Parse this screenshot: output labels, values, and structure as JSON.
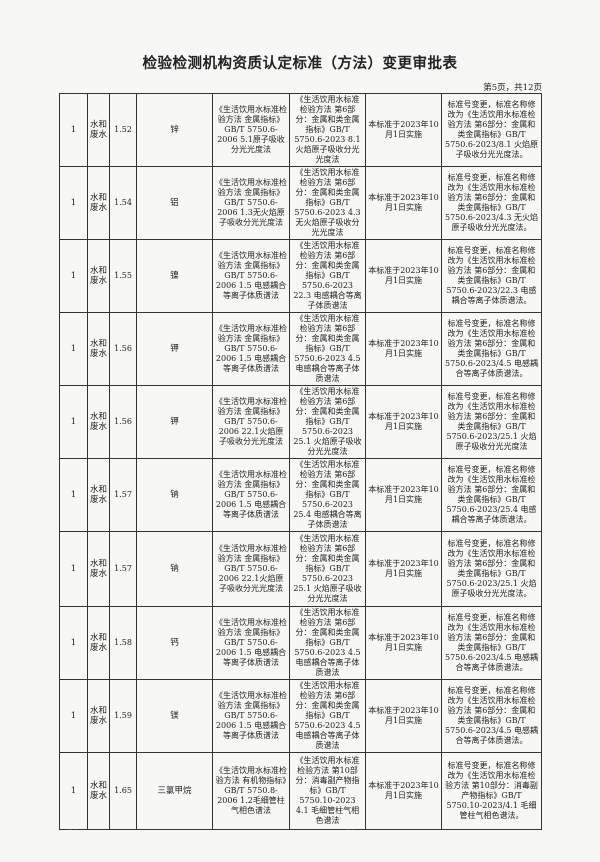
{
  "title": "检验检测机构资质认定标准（方法）变更审批表",
  "page_info": "第5页，共12页",
  "rows": [
    {
      "no": "1",
      "category": "水和废水",
      "code": "1.52",
      "item": "锌",
      "old_std": "《生活饮用水标准检验方法 金属指标》GB/T 5750.6-2006 5.1原子吸收分光光度法",
      "new_std": "《生活饮用水标准检验方法 第6部分：金属和类金属指标》GB/T 5750.6-2023 8.1 火焰原子吸收分光光度法",
      "implement": "本标准于2023年10月1日实施",
      "change": "标准号变更，标准名称修改为《生活饮用水标准检验方法 第6部分：金属和类金属指标》GB/T 5750.6-2023/8.1 火焰原子吸收分光光度法。"
    },
    {
      "no": "1",
      "category": "水和废水",
      "code": "1.54",
      "item": "铝",
      "old_std": "《生活饮用水标准检验方法 金属指标》GB/T 5750.6-2006 1.3无火焰原子吸收分光光度法",
      "new_std": "《生活饮用水标准检验方法 第6部分：金属和类金属指标》GB/T 5750.6-2023 4.3 无火焰原子吸收分光光度法",
      "implement": "本标准于2023年10月1日实施",
      "change": "标准号变更，标准名称修改为《生活饮用水标准检验方法 第6部分：金属和类金属指标》GB/T 5750.6-2023/4.3 无火焰原子吸收分光光度法。"
    },
    {
      "no": "1",
      "category": "水和废水",
      "code": "1.55",
      "item": "镍",
      "old_std": "《生活饮用水标准检验方法 金属指标》GB/T 5750.6-2006 1.5 电感耦合等离子体质谱法",
      "new_std": "《生活饮用水标准检验方法 第6部分：金属和类金属指标》GB/T 5750.6-2023 22.3 电感耦合等离子体质谱法",
      "implement": "本标准于2023年10月1日实施",
      "change": "标准号变更，标准名称修改为《生活饮用水标准检验方法 第6部分：金属和类金属指标》GB/T 5750.6-2023/22.3 电感耦合等离子体质谱法。"
    },
    {
      "no": "1",
      "category": "水和废水",
      "code": "1.56",
      "item": "钾",
      "old_std": "《生活饮用水标准检验方法 金属指标》GB/T 5750.6-2006 1.5 电感耦合等离子体质谱法",
      "new_std": "《生活饮用水标准检验方法 第6部分：金属和类金属指标》GB/T 5750.6-2023 4.5 电感耦合等离子体质谱法",
      "implement": "本标准于2023年10月1日实施",
      "change": "标准号变更，标准名称修改为《生活饮用水标准检验方法 第6部分：金属和类金属指标》GB/T 5750.6-2023/4.5 电感耦合等离子体质谱法。"
    },
    {
      "no": "1",
      "category": "水和废水",
      "code": "1.56",
      "item": "钾",
      "old_std": "《生活饮用水标准检验方法 金属指标》GB/T 5750.6-2006 22.1火焰原子吸收分光光度法",
      "new_std": "《生活饮用水标准检验方法 第6部分：金属和类金属指标》GB/T 5750.6-2023 25.1 火焰原子吸收分光光度法",
      "implement": "本标准于2023年10月1日实施",
      "change": "标准号变更，标准名称修改为《生活饮用水标准检验方法 第6部分：金属和类金属指标》GB/T 5750.6-2023/25.1 火焰原子吸收分光光度法"
    },
    {
      "no": "1",
      "category": "水和废水",
      "code": "1.57",
      "item": "钠",
      "old_std": "《生活饮用水标准检验方法 金属指标》GB/T 5750.6-2006 1.5 电感耦合等离子体质谱法",
      "new_std": "《生活饮用水标准检验方法 第6部分：金属和类金属指标》GB/T 5750.6-2023 25.4 电感耦合等离子体质谱法",
      "implement": "本标准于2023年10月1日实施",
      "change": "标准号变更，标准名称修改为《生活饮用水标准检验方法 第6部分：金属和类金属指标》GB/T 5750.6-2023/25.4 电感耦合等离子体质谱法。"
    },
    {
      "no": "1",
      "category": "水和废水",
      "code": "1.57",
      "item": "钠",
      "old_std": "《生活饮用水标准检验方法 金属指标》GB/T 5750.6-2006 22.1火焰原子吸收分光光度法",
      "new_std": "《生活饮用水标准检验方法 第6部分：金属和类金属指标》GB/T 5750.6-2023 25.1 火焰原子吸收分光光度法",
      "implement": "本标准于2023年10月1日实施",
      "change": "标准号变更，标准名称修改为《生活饮用水标准检验方法 第6部分：金属和类金属指标》GB/T 5750.6-2023/25.1 火焰原子吸收分光光度法。"
    },
    {
      "no": "1",
      "category": "水和废水",
      "code": "1.58",
      "item": "钙",
      "old_std": "《生活饮用水标准检验方法 金属指标》GB/T 5750.6-2006 1.5 电感耦合等离子体质谱法",
      "new_std": "《生活饮用水标准检验方法 第6部分：金属和类金属指标》GB/T 5750.6-2023 4.5 电感耦合等离子体质谱法",
      "implement": "本标准于2023年10月1日实施",
      "change": "标准号变更，标准名称修改为《生活饮用水标准检验方法 第6部分：金属和类金属指标》GB/T 5750.6-2023/4.5 电感耦合等离子体质谱法。"
    },
    {
      "no": "1",
      "category": "水和废水",
      "code": "1.59",
      "item": "镁",
      "old_std": "《生活饮用水标准检验方法 金属指标》GB/T 5750.6-2006 1.5 电感耦合等离子体质谱法",
      "new_std": "《生活饮用水标准检验方法 第6部分：金属和类金属指标》GB/T 5750.6-2023 4.5 电感耦合等离子体质谱法",
      "implement": "本标准于2023年10月1日实施",
      "change": "标准号变更，标准名称修改为《生活饮用水标准检验方法 第6部分：金属和类金属指标》GB/T 5750.6-2023/4.5 电感耦合等离子体质谱法。"
    },
    {
      "no": "1",
      "category": "水和废水",
      "code": "1.65",
      "item": "三氯甲烷",
      "old_std": "《生活饮用水标准检验方法 有机物指标》GB/T 5750.8-2006 1.2毛细管柱气相色谱法",
      "new_std": "《生活饮用水标准检验方法 第10部分：消毒副产物指标》GB/T 5750.10-2023 4.1 毛细管柱气相色谱法",
      "implement": "本标准于2023年10月1日实施",
      "change": "标准号变更，标准名称修改为《生活饮用水标准检验方法 第10部分：消毒副产物指标》GB/T 5750.10-2023/4.1 毛细管柱气相色谱法。"
    }
  ]
}
